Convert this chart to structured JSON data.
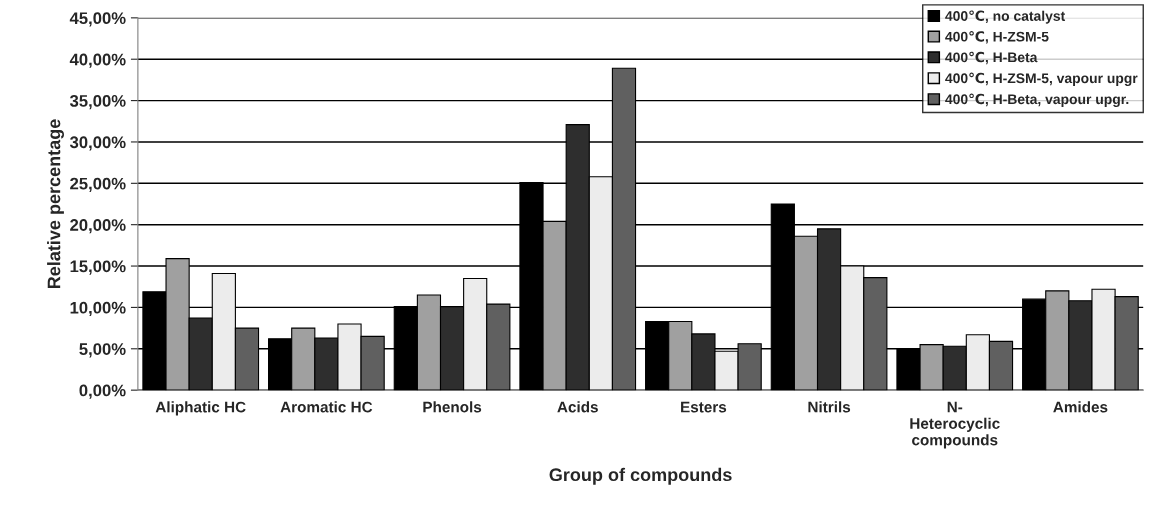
{
  "chart_data": {
    "type": "bar",
    "xlabel": "Group of compounds",
    "ylabel": "Relative percentage",
    "categories": [
      "Aliphatic HC",
      "Aromatic HC",
      "Phenols",
      "Acids",
      "Esters",
      "Nitrils",
      "N-\nHeterocyclic\ncompounds",
      "Amides"
    ],
    "series": [
      {
        "name": "400℃, no catalyst",
        "color": "#000000",
        "values": [
          11.9,
          6.2,
          10.1,
          25.1,
          8.3,
          22.5,
          5.0,
          11.0
        ]
      },
      {
        "name": "400℃, H-ZSM-5",
        "color": "#a0a0a0",
        "values": [
          15.9,
          7.5,
          11.5,
          20.4,
          8.3,
          18.6,
          5.5,
          12.0
        ]
      },
      {
        "name": "400℃, H-Beta",
        "color": "#2e2e2e",
        "values": [
          8.7,
          6.3,
          10.1,
          32.1,
          6.8,
          19.5,
          5.3,
          10.8
        ]
      },
      {
        "name": "400℃, H-ZSM-5, vapour upgr",
        "color": "#ececec",
        "values": [
          14.1,
          8.0,
          13.5,
          25.8,
          4.7,
          15.0,
          6.7,
          12.2
        ]
      },
      {
        "name": "400℃, H-Beta, vapour upgr.",
        "color": "#606060",
        "values": [
          7.5,
          6.5,
          10.4,
          38.9,
          5.6,
          13.6,
          5.9,
          11.3
        ]
      }
    ],
    "ylim": [
      0,
      45
    ],
    "yticks": [
      {
        "value": 0,
        "label": "0,00%"
      },
      {
        "value": 5,
        "label": "5,00%"
      },
      {
        "value": 10,
        "label": "10,00%"
      },
      {
        "value": 15,
        "label": "15,00%"
      },
      {
        "value": 20,
        "label": "20,00%"
      },
      {
        "value": 25,
        "label": "25,00%"
      },
      {
        "value": 30,
        "label": "30,00%"
      },
      {
        "value": 35,
        "label": "35,00%"
      },
      {
        "value": 40,
        "label": "40,00%"
      },
      {
        "value": 45,
        "label": "45,00%"
      }
    ],
    "grid": "y",
    "legend": "top right"
  }
}
